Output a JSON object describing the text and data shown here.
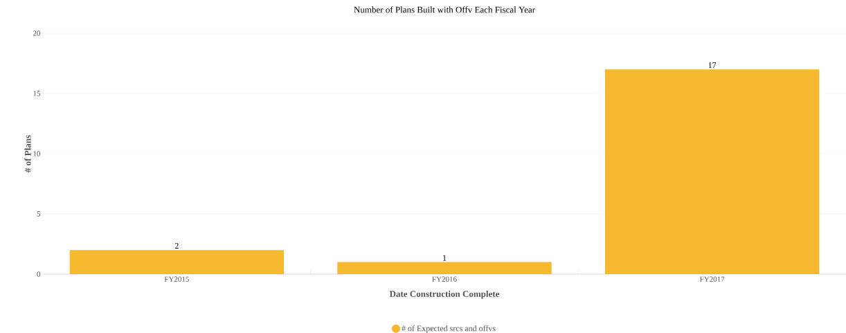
{
  "chart_data": {
    "type": "bar",
    "title": "Number of Plans Built with Offv Each Fiscal Year",
    "xlabel": "Date Construction Complete",
    "ylabel": "# of Plans",
    "categories": [
      "FY2015",
      "FY2016",
      "FY2017"
    ],
    "series": [
      {
        "name": "# of Expected srcs and offvs",
        "color": "#f5b82e",
        "values": [
          2,
          1,
          17
        ]
      }
    ],
    "ylim": [
      0,
      20
    ],
    "yticks": [
      0,
      5,
      10,
      15,
      20
    ],
    "grid": "y",
    "legend": "bottom",
    "data_labels": true
  }
}
